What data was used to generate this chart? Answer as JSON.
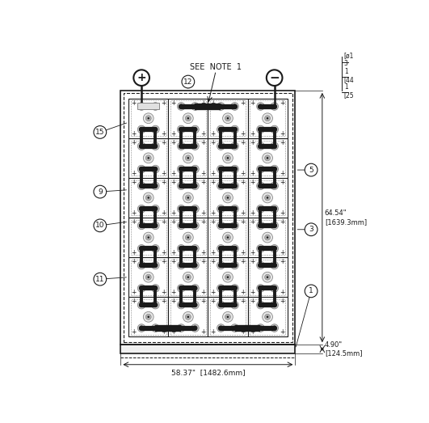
{
  "bg_color": "#ffffff",
  "grid_rows": 6,
  "grid_cols": 4,
  "note_text": "SEE  NOTE  1",
  "dim_bottom": "58.37\"  [1482.6mm]",
  "dim_right_main": "64.54\"\n[1639.3mm]",
  "dim_right_small": "4.90\"\n[124.5mm]",
  "right_partial": [
    "[ø1",
    "3",
    "1",
    "[44",
    "1",
    "[25"
  ],
  "dark": "#1a1a1a",
  "gray": "#888888",
  "light_gray": "#cccccc"
}
